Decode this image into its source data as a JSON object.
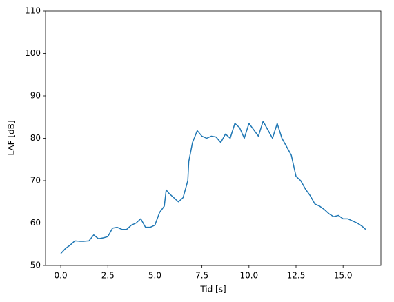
{
  "chart_data": {
    "type": "line",
    "xlabel": "Tid [s]",
    "ylabel": "LAF [dB]",
    "x": [
      0.0,
      0.25,
      0.5,
      0.75,
      1.0,
      1.25,
      1.5,
      1.75,
      2.0,
      2.25,
      2.5,
      2.75,
      3.0,
      3.25,
      3.5,
      3.75,
      4.0,
      4.25,
      4.5,
      4.75,
      5.0,
      5.25,
      5.5,
      5.6,
      5.75,
      6.0,
      6.25,
      6.5,
      6.75,
      6.8,
      7.0,
      7.25,
      7.5,
      7.75,
      8.0,
      8.25,
      8.5,
      8.75,
      9.0,
      9.25,
      9.5,
      9.75,
      10.0,
      10.25,
      10.5,
      10.75,
      11.0,
      11.25,
      11.5,
      11.75,
      12.0,
      12.25,
      12.5,
      12.75,
      13.0,
      13.25,
      13.5,
      13.75,
      14.0,
      14.25,
      14.5,
      14.75,
      15.0,
      15.25,
      15.5,
      15.75,
      16.0,
      16.2
    ],
    "series": [
      {
        "color": "#1f77b4",
        "values": [
          52.8,
          54,
          54.8,
          55.8,
          55.7,
          55.7,
          55.8,
          57.2,
          56.3,
          56.5,
          56.8,
          58.8,
          59,
          58.5,
          58.5,
          59.5,
          60,
          61,
          59,
          59,
          59.5,
          62.5,
          64,
          67.8,
          67,
          66,
          65,
          66,
          70,
          74.5,
          79,
          81.8,
          80.5,
          80,
          80.5,
          80.3,
          79,
          81,
          80,
          83.5,
          82.5,
          80,
          83.5,
          82,
          80.5,
          84,
          82,
          80,
          83.5,
          80,
          78,
          76,
          71,
          70,
          68,
          66.5,
          64.5,
          64,
          63.2,
          62.2,
          61.5,
          61.8,
          61,
          61,
          60.5,
          60,
          59.3,
          58.5
        ]
      }
    ],
    "xlim": [
      -0.81,
      17.01
    ],
    "xticks": [
      {
        "value": 0,
        "label": "0.0"
      },
      2.5,
      {
        "value": 5,
        "label": "5.0"
      },
      7.5,
      {
        "value": 10,
        "label": "10.0"
      },
      12.5,
      {
        "value": 15,
        "label": "15.0"
      }
    ],
    "ylim": [
      50,
      110
    ],
    "yticks": [
      50,
      60,
      70,
      80,
      90,
      100,
      110
    ]
  }
}
